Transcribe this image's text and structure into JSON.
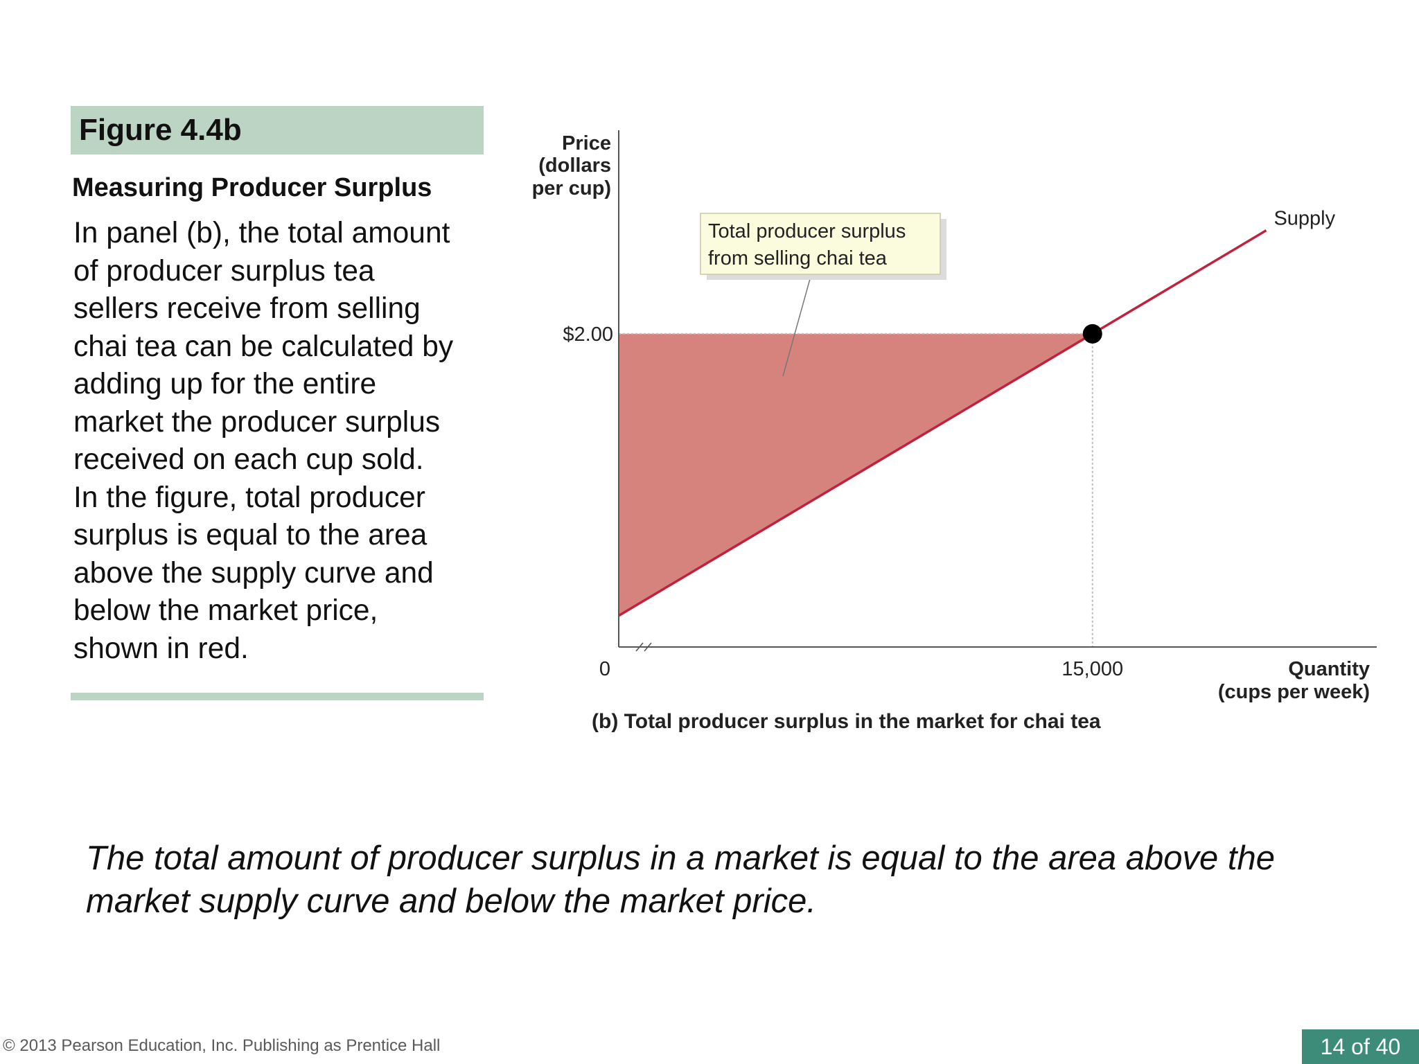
{
  "figure": {
    "number": "Figure 4.4b",
    "title": "Measuring Producer Surplus",
    "body": [
      "In panel (b), the total amount",
      "of producer surplus tea",
      "sellers receive from selling",
      "chai tea can be calculated by",
      "adding up for the entire",
      "market the producer surplus",
      "received on each cup sold.",
      "In the figure, total producer",
      "surplus is equal to the area",
      "above the supply curve and",
      "below the market price,",
      "shown in red."
    ]
  },
  "summary": {
    "line1": "The total amount of producer surplus in a market is equal to the area above the",
    "line2": "market supply curve and below the market price."
  },
  "footer": {
    "copyright": "© 2013 Pearson Education, Inc. Publishing as Prentice Hall",
    "page": "14 of 40"
  },
  "chart_data": {
    "type": "line",
    "caption": "(b) Total producer surplus in the market for chai tea",
    "ylabel": [
      "Price",
      "(dollars",
      "per cup)"
    ],
    "xlabel": [
      "Quantity",
      "(cups per week)"
    ],
    "x_origin_label": "0",
    "x_ticks": [
      {
        "value": 15000,
        "label": "15,000"
      }
    ],
    "y_ticks": [
      {
        "value": 2.0,
        "label": "$2.00"
      }
    ],
    "xlim": [
      0,
      24000
    ],
    "ylim": [
      0,
      3.3
    ],
    "axis_break": "x",
    "series": [
      {
        "name": "Supply",
        "color": "#c0223d",
        "points": [
          {
            "x": 0,
            "y": 0.2
          },
          {
            "x": 15000,
            "y": 2.0
          },
          {
            "x": 20500,
            "y": 2.66
          }
        ]
      }
    ],
    "equilibrium": {
      "x": 15000,
      "y": 2.0
    },
    "shaded_area": {
      "label": "Total producer surplus from selling chai tea",
      "color": "#d6827d",
      "vertices": [
        {
          "x": 0,
          "y": 0.2
        },
        {
          "x": 0,
          "y": 2.0
        },
        {
          "x": 15000,
          "y": 2.0
        }
      ]
    },
    "callout": {
      "lines": [
        "Total producer surplus",
        "from selling chai tea"
      ],
      "fill": "#fbfbde"
    },
    "grid": false
  }
}
